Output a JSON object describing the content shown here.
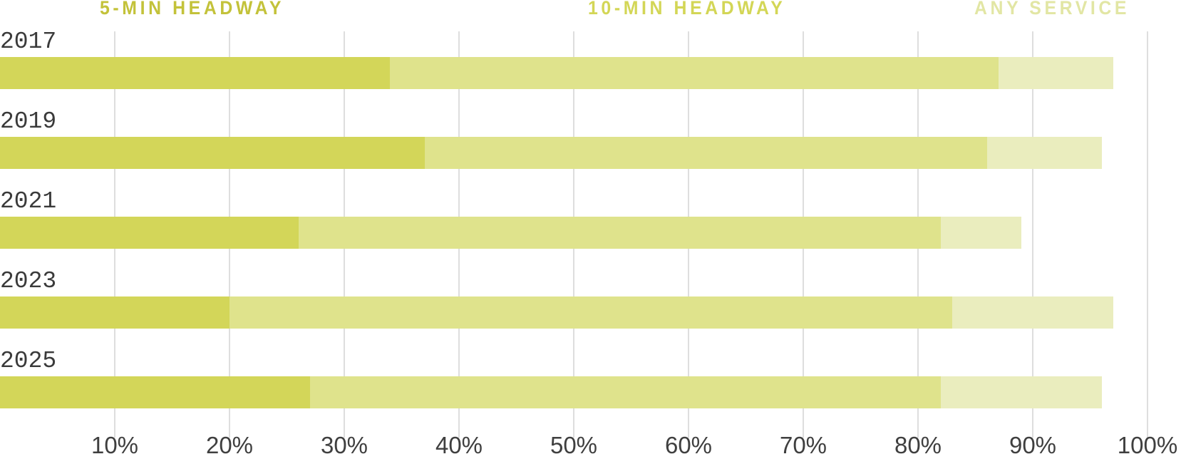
{
  "legend": {
    "five_min": {
      "label": "5-MIN HEADWAY",
      "color": "#c3c23a"
    },
    "ten_min": {
      "label": "10-MIN HEADWAY",
      "color": "#d3d656"
    },
    "any": {
      "label": "ANY SERVICE",
      "color": "#e2e6a4"
    }
  },
  "colors": {
    "five_min": "#d3d659",
    "ten_min": "#dfe38c",
    "any": "#eaedbe",
    "grid": "#dedede"
  },
  "axis": {
    "ticks": [
      "10%",
      "20%",
      "30%",
      "40%",
      "50%",
      "60%",
      "70%",
      "80%",
      "90%",
      "100%"
    ]
  },
  "rows": [
    {
      "year": "2017"
    },
    {
      "year": "2019"
    },
    {
      "year": "2021"
    },
    {
      "year": "2023"
    },
    {
      "year": "2025"
    }
  ],
  "chart_data": {
    "type": "bar",
    "orientation": "horizontal",
    "stacked": false,
    "overlapping_cumulative": true,
    "title": "",
    "xlabel": "",
    "ylabel": "",
    "xlim": [
      0,
      100
    ],
    "grid": true,
    "legend_position": "top",
    "categories": [
      "2017",
      "2019",
      "2021",
      "2023",
      "2025"
    ],
    "series": [
      {
        "name": "5-MIN HEADWAY",
        "values": [
          34,
          37,
          26,
          20,
          27
        ]
      },
      {
        "name": "10-MIN HEADWAY",
        "values": [
          87,
          86,
          82,
          83,
          82
        ]
      },
      {
        "name": "ANY SERVICE",
        "values": [
          97,
          96,
          89,
          97,
          96
        ]
      }
    ],
    "tick_labels": [
      "10%",
      "20%",
      "30%",
      "40%",
      "50%",
      "60%",
      "70%",
      "80%",
      "90%",
      "100%"
    ]
  }
}
